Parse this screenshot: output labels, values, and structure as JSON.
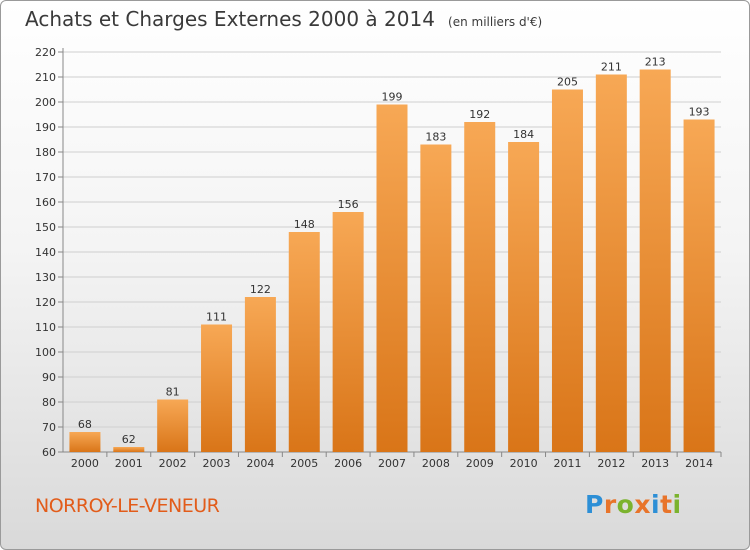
{
  "title": "Achats et Charges Externes 2000 à 2014",
  "subtitle": "(en milliers d'€)",
  "city": "NORROY-LE-VENEUR",
  "logo": {
    "text": "Proxiti",
    "letters": [
      {
        "char": "P",
        "color": "#2d8fd6"
      },
      {
        "char": "r",
        "color": "#e8742a"
      },
      {
        "char": "o",
        "color": "#7bb32e"
      },
      {
        "char": "x",
        "color": "#e8742a"
      },
      {
        "char": "i",
        "color": "#2d8fd6"
      },
      {
        "char": "t",
        "color": "#e8742a"
      },
      {
        "char": "i",
        "color": "#7bb32e"
      }
    ]
  },
  "colors": {
    "bar_top": "#f7a855",
    "bar_bottom": "#d97518",
    "grid": "#cfcfcf",
    "text": "#333333"
  },
  "chart_data": {
    "type": "bar",
    "title": "Achats et Charges Externes 2000 à 2014",
    "subtitle": "(en milliers d'€)",
    "xlabel": "",
    "ylabel": "",
    "categories": [
      "2000",
      "2001",
      "2002",
      "2003",
      "2004",
      "2005",
      "2006",
      "2007",
      "2008",
      "2009",
      "2010",
      "2011",
      "2012",
      "2013",
      "2014"
    ],
    "values": [
      68,
      62,
      81,
      111,
      122,
      148,
      156,
      199,
      183,
      192,
      184,
      205,
      211,
      213,
      193
    ],
    "ylim": [
      60,
      220
    ],
    "yticks": [
      60,
      70,
      80,
      90,
      100,
      110,
      120,
      130,
      140,
      150,
      160,
      170,
      180,
      190,
      200,
      210,
      220
    ],
    "grid": true
  }
}
